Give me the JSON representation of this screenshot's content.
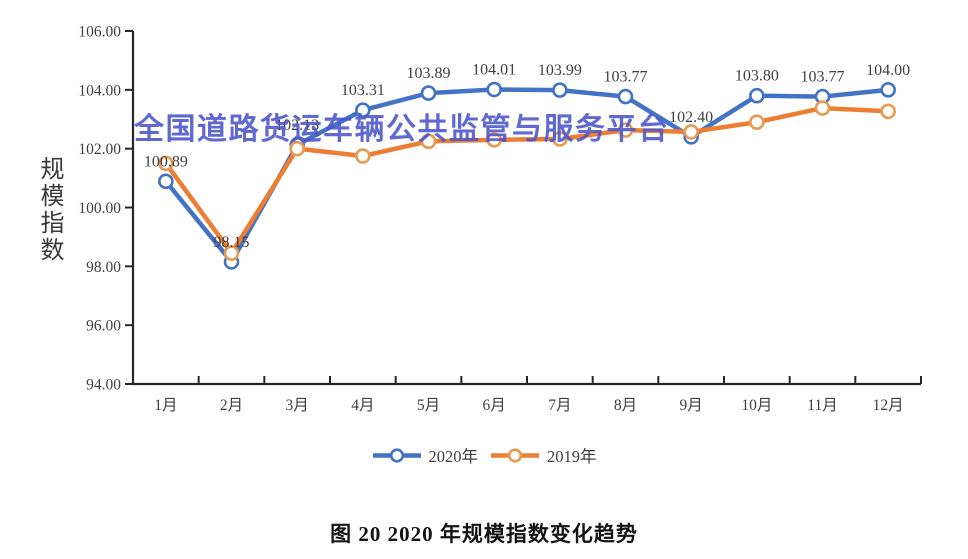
{
  "watermark": {
    "text": "全国道路货运车辆公共监管与服务平台",
    "color": "#4a55cb"
  },
  "y_axis_title": "规模指数",
  "caption": "图 20 2020 年规模指数变化趋势",
  "legend": [
    {
      "label": "2020年",
      "color": "#4472c4",
      "marker_stroke": "#4472c4"
    },
    {
      "label": "2019年",
      "color": "#ed7d31",
      "marker_stroke": "#e69a52"
    }
  ],
  "chart_data": {
    "type": "line",
    "title": "图 20 2020 年规模指数变化趋势",
    "xlabel": "",
    "ylabel": "规模指数",
    "ylim": [
      94,
      106
    ],
    "ytick_step": 2,
    "yticks": [
      "106.00",
      "104.00",
      "102.00",
      "100.00",
      "98.00",
      "96.00",
      "94.00"
    ],
    "grid": false,
    "legend_position": "bottom",
    "axis_color": "#262626",
    "categories": [
      "1月",
      "2月",
      "3月",
      "4月",
      "5月",
      "6月",
      "7月",
      "8月",
      "9月",
      "10月",
      "11月",
      "12月"
    ],
    "series": [
      {
        "name": "2020年",
        "color": "#4472c4",
        "marker_stroke": "#4472c4",
        "values": [
          100.89,
          98.15,
          102.13,
          103.31,
          103.89,
          104.01,
          103.99,
          103.77,
          102.4,
          103.8,
          103.77,
          104.0
        ],
        "labels": [
          "100.89",
          "98.15",
          "102.13",
          "103.31",
          "103.89",
          "104.01",
          "103.99",
          "103.77",
          "102.40",
          "103.80",
          "103.77",
          "104.00"
        ],
        "show_labels": true
      },
      {
        "name": "2019年",
        "color": "#ed7d31",
        "marker_stroke": "#e69a52",
        "values": [
          101.5,
          98.45,
          102.0,
          101.75,
          102.25,
          102.3,
          102.33,
          102.63,
          102.57,
          102.9,
          103.38,
          103.27
        ],
        "labels": [],
        "show_labels": false
      }
    ]
  }
}
